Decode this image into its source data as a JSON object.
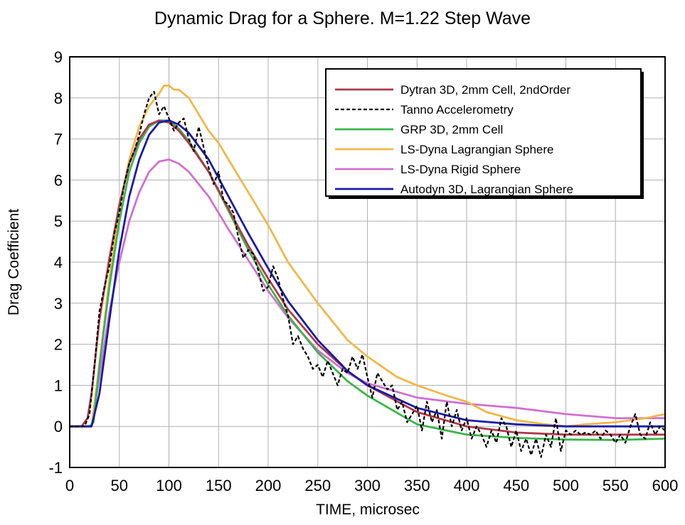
{
  "chart_data": {
    "type": "line",
    "title": "Dynamic Drag for a Sphere. M=1.22 Step Wave",
    "xlabel": "TIME, microsec",
    "ylabel": "Drag Coefficient",
    "xlim": [
      0,
      600
    ],
    "ylim": [
      -1,
      9
    ],
    "xticks": [
      "0",
      "50",
      "100",
      "150",
      "200",
      "250",
      "300",
      "350",
      "400",
      "450",
      "500",
      "550",
      "600"
    ],
    "yticks": [
      "-1",
      "0",
      "1",
      "2",
      "3",
      "4",
      "5",
      "6",
      "7",
      "8",
      "9"
    ],
    "grid": true,
    "legend_position": "top-right",
    "series": [
      {
        "name": "Dytran 3D, 2mm Cell, 2ndOrder",
        "color": "#b03848",
        "dash": "solid",
        "x": [
          0,
          12,
          18,
          22,
          30,
          40,
          50,
          60,
          70,
          80,
          90,
          100,
          110,
          120,
          140,
          160,
          180,
          200,
          220,
          250,
          280,
          300,
          350,
          400,
          450,
          500,
          550,
          600
        ],
        "y": [
          0,
          0,
          0.2,
          0.8,
          2.6,
          4.1,
          5.4,
          6.4,
          7.0,
          7.35,
          7.45,
          7.4,
          7.2,
          6.9,
          6.2,
          5.3,
          4.4,
          3.6,
          2.85,
          2.0,
          1.35,
          1.0,
          0.35,
          0.0,
          -0.15,
          -0.2,
          -0.2,
          -0.2
        ]
      },
      {
        "name": "Tanno Accelerometry",
        "color": "#000000",
        "dash": "dashed",
        "x": [
          0,
          15,
          20,
          25,
          30,
          35,
          40,
          45,
          50,
          55,
          60,
          65,
          70,
          75,
          80,
          85,
          90,
          95,
          100,
          105,
          110,
          115,
          120,
          125,
          130,
          135,
          140,
          145,
          150,
          155,
          160,
          165,
          170,
          175,
          180,
          185,
          190,
          195,
          200,
          205,
          210,
          215,
          220,
          225,
          230,
          235,
          240,
          245,
          250,
          255,
          260,
          265,
          270,
          275,
          280,
          285,
          290,
          295,
          300,
          305,
          310,
          315,
          320,
          325,
          330,
          335,
          340,
          345,
          350,
          355,
          360,
          365,
          370,
          375,
          380,
          385,
          390,
          395,
          400,
          405,
          410,
          415,
          420,
          425,
          430,
          435,
          440,
          445,
          450,
          455,
          460,
          465,
          470,
          475,
          480,
          485,
          490,
          495,
          500,
          505,
          510,
          515,
          520,
          525,
          530,
          535,
          540,
          545,
          550,
          555,
          560,
          565,
          570,
          575,
          580,
          585,
          590,
          595,
          600
        ],
        "y": [
          0,
          0,
          0.3,
          1.5,
          2.8,
          3.4,
          3.9,
          4.7,
          5.2,
          5.9,
          6.4,
          6.7,
          7.1,
          7.6,
          8.0,
          8.15,
          7.6,
          7.8,
          7.5,
          7.2,
          7.4,
          7.5,
          7.0,
          6.7,
          7.3,
          6.8,
          6.3,
          5.9,
          6.2,
          5.5,
          5.4,
          5.2,
          4.6,
          4.1,
          4.3,
          4.2,
          3.8,
          3.3,
          3.4,
          3.9,
          3.6,
          3.1,
          2.7,
          2.0,
          2.2,
          1.9,
          1.7,
          1.4,
          1.5,
          1.2,
          1.6,
          1.3,
          1.0,
          1.4,
          1.3,
          1.7,
          1.4,
          1.75,
          1.2,
          0.7,
          1.3,
          1.1,
          0.9,
          1.0,
          0.4,
          0.6,
          0.1,
          0.3,
          0.5,
          -0.1,
          0.6,
          0.1,
          0.4,
          -0.3,
          0.6,
          0.0,
          0.4,
          -0.1,
          0.2,
          -0.3,
          0.0,
          -0.2,
          -0.5,
          -0.1,
          -0.4,
          0.2,
          0.0,
          -0.5,
          -0.1,
          -0.6,
          -0.3,
          -0.7,
          -0.3,
          -0.75,
          -0.2,
          -0.5,
          0.2,
          -0.6,
          -0.1,
          -0.2,
          -0.1,
          -0.2,
          -0.15,
          -0.2,
          -0.1,
          -0.3,
          -0.1,
          -0.2,
          -0.4,
          -0.2,
          -0.4,
          0.0,
          0.3,
          -0.2,
          -0.3,
          0.1,
          -0.2,
          0.0,
          -0.1
        ]
      },
      {
        "name": "GRP 3D, 2mm Cell",
        "color": "#3cb44b",
        "dash": "solid",
        "x": [
          0,
          20,
          24,
          30,
          40,
          50,
          60,
          70,
          80,
          90,
          100,
          110,
          120,
          140,
          160,
          180,
          200,
          220,
          250,
          280,
          300,
          350,
          400,
          450,
          500,
          550,
          600
        ],
        "y": [
          0,
          0,
          0.1,
          1.5,
          3.4,
          5.0,
          6.2,
          6.9,
          7.3,
          7.45,
          7.45,
          7.25,
          6.95,
          6.2,
          5.25,
          4.3,
          3.45,
          2.7,
          1.8,
          1.1,
          0.75,
          0.05,
          -0.2,
          -0.28,
          -0.32,
          -0.33,
          -0.3
        ]
      },
      {
        "name": "LS-Dyna Lagrangian Sphere",
        "color": "#f0b848",
        "dash": "solid",
        "x": [
          0,
          22,
          30,
          40,
          50,
          60,
          70,
          80,
          90,
          95,
          100,
          105,
          110,
          120,
          130,
          140,
          150,
          160,
          180,
          200,
          220,
          250,
          280,
          300,
          330,
          350,
          380,
          400,
          420,
          450,
          480,
          500,
          520,
          550,
          580,
          600
        ],
        "y": [
          0,
          0,
          1.5,
          3.6,
          5.3,
          6.5,
          7.3,
          7.8,
          8.1,
          8.3,
          8.3,
          8.2,
          8.2,
          8.0,
          7.6,
          7.2,
          6.9,
          6.5,
          5.7,
          4.9,
          4.0,
          3.0,
          2.1,
          1.7,
          1.2,
          1.0,
          0.75,
          0.6,
          0.35,
          0.15,
          0.05,
          0.0,
          0.05,
          0.1,
          0.2,
          0.3
        ]
      },
      {
        "name": "LS-Dyna Rigid Sphere",
        "color": "#d070d0",
        "dash": "solid",
        "x": [
          0,
          22,
          30,
          40,
          50,
          60,
          70,
          80,
          90,
          100,
          110,
          120,
          140,
          160,
          180,
          200,
          220,
          250,
          280,
          300,
          350,
          400,
          450,
          500,
          550,
          600
        ],
        "y": [
          0,
          0,
          1.2,
          2.8,
          4.0,
          5.0,
          5.7,
          6.2,
          6.45,
          6.5,
          6.4,
          6.2,
          5.6,
          4.8,
          4.05,
          3.3,
          2.65,
          1.85,
          1.3,
          1.05,
          0.7,
          0.55,
          0.45,
          0.3,
          0.2,
          0.2
        ]
      },
      {
        "name": "Autodyn 3D, Lagrangian Sphere",
        "color": "#1a1aa8",
        "dash": "solid",
        "x": [
          0,
          22,
          30,
          40,
          50,
          60,
          70,
          80,
          90,
          100,
          110,
          120,
          140,
          160,
          180,
          200,
          220,
          250,
          280,
          300,
          350,
          400,
          450,
          500,
          550,
          600
        ],
        "y": [
          0,
          0,
          0.8,
          2.6,
          4.3,
          5.6,
          6.5,
          7.1,
          7.4,
          7.45,
          7.35,
          7.15,
          6.5,
          5.6,
          4.7,
          3.85,
          3.05,
          2.1,
          1.35,
          1.0,
          0.45,
          0.15,
          0.05,
          0.0,
          0.0,
          0.0
        ]
      }
    ]
  }
}
